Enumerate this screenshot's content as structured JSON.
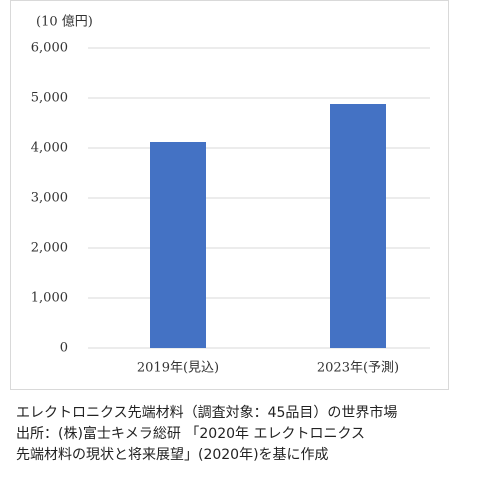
{
  "chart_data": {
    "type": "bar",
    "unit_label": "(10 億円)",
    "categories": [
      "2019年(見込)",
      "2023年(予測)"
    ],
    "values": [
      4120,
      4880
    ],
    "color": "#4472c4",
    "ylim": [
      0,
      6000
    ],
    "yticks": [
      0,
      {
        "value": 1000,
        "label": "1,000"
      },
      {
        "value": 2000,
        "label": "2,000"
      },
      {
        "value": 3000,
        "label": "3,000"
      },
      {
        "value": 4000,
        "label": "4,000"
      },
      {
        "value": 5000,
        "label": "5,000"
      },
      {
        "value": 6000,
        "label": "6,000"
      }
    ],
    "grid": true
  },
  "caption": [
    "エレクトロニクス先端材料（調査対象：45品目）の世界市場",
    "出所：(株)富士キメラ総研 「2020年 エレクトロニクス",
    "先端材料の現状と将来展望」(2020年)を基に作成"
  ]
}
